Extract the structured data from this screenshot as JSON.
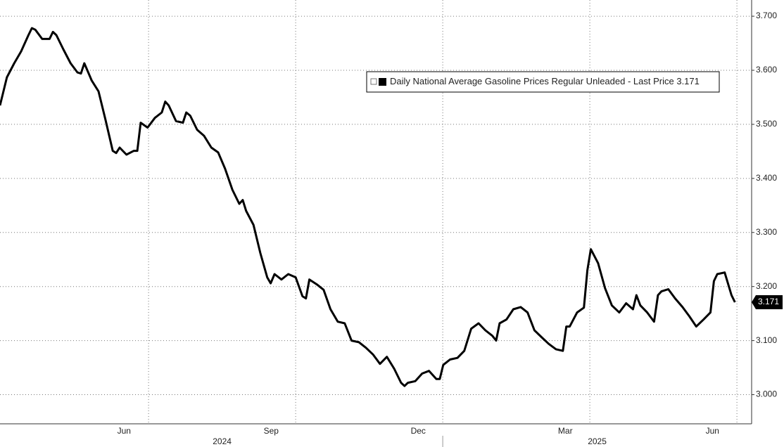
{
  "chart_data": {
    "type": "line",
    "x": [
      -0.03,
      0.11,
      0.26,
      0.4,
      0.55,
      0.62,
      0.69,
      0.83,
      0.98,
      1.05,
      1.12,
      1.26,
      1.41,
      1.55,
      1.62,
      1.69,
      1.84,
      1.98,
      2.12,
      2.27,
      2.34,
      2.41,
      2.55,
      2.7,
      2.77,
      2.84,
      2.98,
      3.13,
      3.27,
      3.34,
      3.41,
      3.56,
      3.7,
      3.77,
      3.85,
      3.99,
      4.13,
      4.28,
      4.42,
      4.56,
      4.71,
      4.85,
      4.92,
      4.99,
      5.14,
      5.28,
      5.42,
      5.49,
      5.57,
      5.71,
      5.85,
      6.0,
      6.14,
      6.21,
      6.28,
      6.43,
      6.57,
      6.71,
      6.86,
      7.0,
      7.14,
      7.29,
      7.43,
      7.58,
      7.72,
      7.86,
      8.01,
      8.15,
      8.22,
      8.29,
      8.44,
      8.58,
      8.72,
      8.87,
      8.94,
      9.01,
      9.15,
      9.3,
      9.44,
      9.58,
      9.73,
      9.87,
      10.01,
      10.09,
      10.16,
      10.3,
      10.44,
      10.59,
      10.73,
      10.87,
      11.02,
      11.16,
      11.31,
      11.45,
      11.52,
      11.59,
      11.74,
      11.88,
      11.95,
      12.02,
      12.17,
      12.31,
      12.45,
      12.6,
      12.74,
      12.88,
      12.95,
      13.03,
      13.17,
      13.31,
      13.39,
      13.46,
      13.6,
      13.74,
      13.89,
      14.03,
      14.17,
      14.32,
      14.46,
      14.53,
      14.6,
      14.75,
      14.89,
      14.96
    ],
    "series": [
      {
        "name": "Daily National Average Gasoline Prices Regular Unleaded",
        "color": "#000000",
        "values": [
          3.535,
          3.587,
          3.613,
          3.635,
          3.665,
          3.678,
          3.675,
          3.658,
          3.658,
          3.671,
          3.665,
          3.639,
          3.613,
          3.596,
          3.594,
          3.613,
          3.581,
          3.561,
          3.509,
          3.451,
          3.447,
          3.457,
          3.444,
          3.451,
          3.451,
          3.503,
          3.494,
          3.512,
          3.522,
          3.542,
          3.535,
          3.506,
          3.503,
          3.522,
          3.516,
          3.49,
          3.479,
          3.457,
          3.448,
          3.418,
          3.379,
          3.353,
          3.36,
          3.34,
          3.314,
          3.262,
          3.217,
          3.206,
          3.223,
          3.213,
          3.223,
          3.217,
          3.182,
          3.178,
          3.213,
          3.204,
          3.194,
          3.158,
          3.135,
          3.132,
          3.1,
          3.097,
          3.087,
          3.074,
          3.057,
          3.07,
          3.048,
          3.022,
          3.016,
          3.022,
          3.025,
          3.039,
          3.044,
          3.029,
          3.029,
          3.055,
          3.065,
          3.068,
          3.081,
          3.122,
          3.132,
          3.119,
          3.109,
          3.1,
          3.132,
          3.139,
          3.158,
          3.162,
          3.152,
          3.119,
          3.106,
          3.094,
          3.084,
          3.081,
          3.126,
          3.126,
          3.152,
          3.161,
          3.23,
          3.269,
          3.243,
          3.197,
          3.165,
          3.152,
          3.169,
          3.158,
          3.184,
          3.165,
          3.152,
          3.135,
          3.184,
          3.191,
          3.195,
          3.178,
          3.162,
          3.145,
          3.126,
          3.139,
          3.152,
          3.21,
          3.223,
          3.226,
          3.184,
          3.171
        ]
      }
    ],
    "last_price_label": "- Last Price",
    "last_price": 3.171,
    "xlim": [
      -0.03,
      15.3
    ],
    "xticks": [
      {
        "value": 2.5,
        "label": "Jun"
      },
      {
        "value": 5.5,
        "label": "Sep"
      },
      {
        "value": 8.5,
        "label": "Dec"
      },
      {
        "value": 11.5,
        "label": "Mar"
      },
      {
        "value": 14.5,
        "label": "Jun"
      }
    ],
    "xgrid": [
      3,
      6,
      9,
      12,
      15
    ],
    "year_labels": [
      {
        "value": 4.5,
        "label": "2024"
      },
      {
        "value": 12.15,
        "label": "2025"
      }
    ],
    "year_divider": 9,
    "ylim": [
      2.95,
      3.73
    ],
    "yticks": [
      {
        "value": 3.0,
        "label": "3.000"
      },
      {
        "value": 3.1,
        "label": "3.100"
      },
      {
        "value": 3.2,
        "label": "3.200"
      },
      {
        "value": 3.3,
        "label": "3.300"
      },
      {
        "value": 3.4,
        "label": "3.400"
      },
      {
        "value": 3.5,
        "label": "3.500"
      },
      {
        "value": 3.6,
        "label": "3.600"
      },
      {
        "value": 3.7,
        "label": "3.700"
      }
    ],
    "grid": true
  }
}
